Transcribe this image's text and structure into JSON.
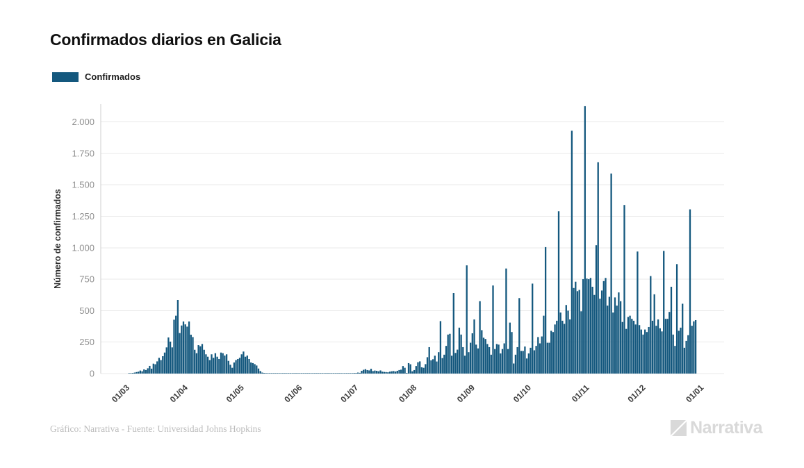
{
  "title": "Confirmados diarios en Galicia",
  "legend": {
    "label": "Confirmados",
    "swatch_color": "#14587e"
  },
  "footer": {
    "credit": "Gráfico: Narrativa - Fuente: Universidad Johns Hopkins"
  },
  "logo": {
    "text": "Narrativa",
    "icon": "narrativa-n-icon",
    "color": "#d9d9d9"
  },
  "colors": {
    "bar": "#14587e",
    "grid": "#e9e9e9",
    "axis_line": "#cfcfcf",
    "y_tick_label": "#909090",
    "x_tick_label": "#3b3b3b",
    "y_axis_title": "#2b2b2b",
    "background": "#ffffff"
  },
  "chart_data": {
    "type": "bar",
    "title": "Confirmados diarios en Galicia",
    "xlabel": "",
    "ylabel": "Número de confirmados",
    "grid": true,
    "legend_position": "top-left",
    "ylim": [
      0,
      2140
    ],
    "y_ticks": [
      0,
      250,
      500,
      750,
      1000,
      1250,
      1500,
      1750,
      2000
    ],
    "y_tick_labels": [
      "0",
      "250",
      "500",
      "750",
      "1.000",
      "1.250",
      "1.500",
      "1.750",
      "2.000"
    ],
    "x_tick_labels": [
      "01/03",
      "01/04",
      "01/05",
      "01/06",
      "01/07",
      "01/08",
      "01/09",
      "01/10",
      "01/11",
      "01/12",
      "01/01"
    ],
    "x_tick_days": [
      0,
      31,
      61,
      92,
      122,
      153,
      184,
      214,
      245,
      275,
      306
    ],
    "x_unit": "day",
    "series": [
      {
        "name": "Confirmados",
        "color": "#14587e",
        "first_bar_label": "01/03",
        "values": [
          0,
          1,
          2,
          5,
          8,
          12,
          15,
          24,
          18,
          33,
          28,
          42,
          61,
          39,
          79,
          74,
          97,
          125,
          107,
          138,
          167,
          208,
          287,
          254,
          208,
          428,
          460,
          585,
          322,
          382,
          414,
          391,
          373,
          414,
          309,
          290,
          189,
          162,
          226,
          217,
          235,
          189,
          153,
          134,
          107,
          153,
          125,
          162,
          134,
          116,
          167,
          162,
          143,
          153,
          101,
          70,
          46,
          88,
          107,
          116,
          125,
          153,
          175,
          134,
          143,
          116,
          88,
          83,
          75,
          64,
          40,
          20,
          8,
          5,
          3,
          4,
          2,
          3,
          2,
          3,
          2,
          3,
          2,
          2,
          3,
          2,
          3,
          2,
          3,
          2,
          2,
          3,
          2,
          3,
          2,
          3,
          2,
          3,
          2,
          3,
          2,
          3,
          3,
          2,
          3,
          2,
          3,
          2,
          3,
          3,
          2,
          3,
          2,
          3,
          3,
          2,
          3,
          4,
          3,
          4,
          3,
          5,
          5,
          8,
          6,
          22,
          30,
          35,
          28,
          25,
          38,
          20,
          24,
          22,
          18,
          25,
          15,
          13,
          12,
          10,
          15,
          18,
          20,
          16,
          22,
          28,
          31,
          60,
          46,
          5,
          83,
          74,
          18,
          28,
          60,
          90,
          97,
          50,
          46,
          75,
          130,
          210,
          105,
          114,
          142,
          96,
          170,
          417,
          123,
          150,
          220,
          310,
          316,
          142,
          640,
          164,
          190,
          365,
          310,
          210,
          142,
          860,
          170,
          245,
          320,
          430,
          230,
          200,
          575,
          345,
          285,
          275,
          235,
          210,
          150,
          700,
          195,
          235,
          230,
          160,
          195,
          240,
          835,
          195,
          405,
          330,
          80,
          150,
          210,
          600,
          180,
          180,
          215,
          120,
          160,
          205,
          715,
          185,
          220,
          290,
          240,
          295,
          460,
          1005,
          245,
          245,
          340,
          330,
          390,
          420,
          1290,
          485,
          420,
          395,
          545,
          500,
          430,
          1930,
          680,
          730,
          655,
          665,
          495,
          750,
          2125,
          755,
          750,
          760,
          690,
          625,
          1020,
          1680,
          595,
          660,
          735,
          760,
          540,
          610,
          1590,
          485,
          605,
          540,
          645,
          575,
          410,
          1340,
          355,
          450,
          460,
          435,
          420,
          390,
          970,
          385,
          350,
          310,
          350,
          330,
          370,
          775,
          420,
          630,
          380,
          430,
          360,
          335,
          975,
          435,
          435,
          490,
          690,
          310,
          220,
          870,
          340,
          365,
          555,
          205,
          260,
          305,
          1305,
          380,
          415,
          425
        ]
      }
    ]
  }
}
